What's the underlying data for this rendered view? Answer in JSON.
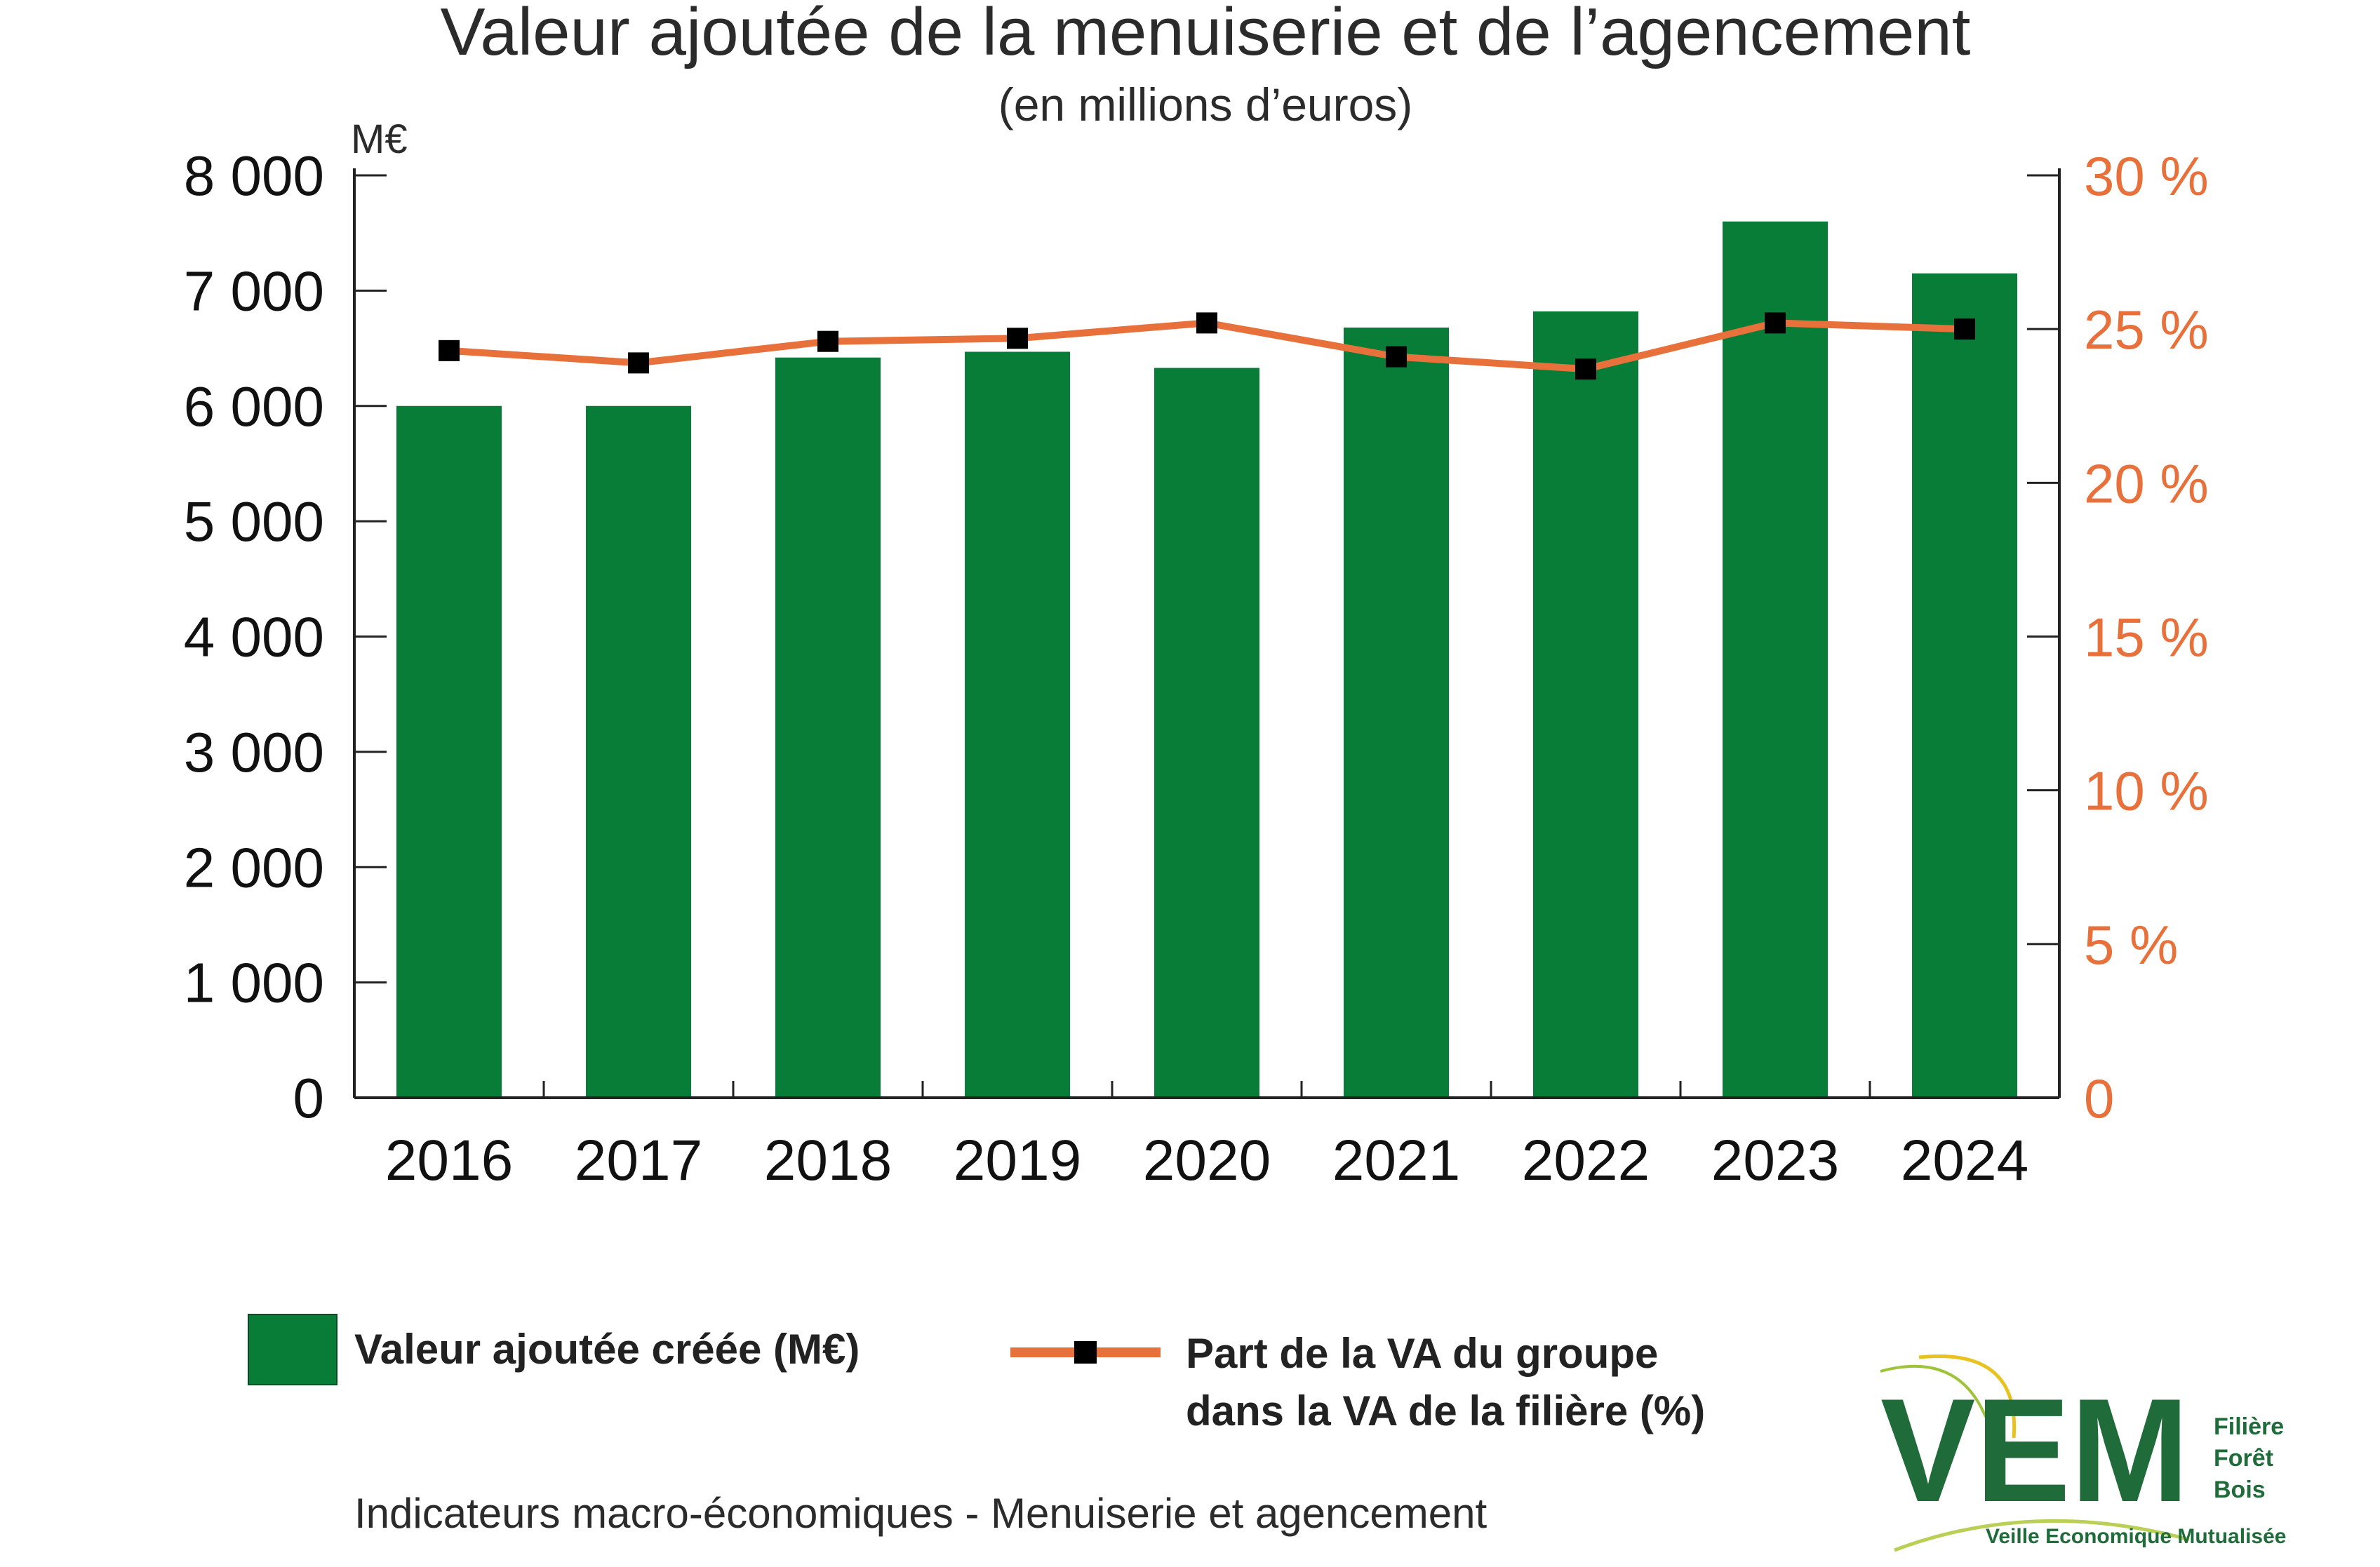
{
  "chart_data": {
    "type": "bar",
    "title": "Valeur ajoutée de la menuiserie et de l’agencement",
    "subtitle": "(en millions d’euros)",
    "y_unit": "M€",
    "categories": [
      "2016",
      "2017",
      "2018",
      "2019",
      "2020",
      "2021",
      "2022",
      "2023",
      "2024"
    ],
    "series": [
      {
        "name": "Valeur ajoutée créée (M€)",
        "type": "bar",
        "axis": "left",
        "values": [
          6000,
          6000,
          6420,
          6470,
          6330,
          6680,
          6820,
          7600,
          7150
        ]
      },
      {
        "name": "Part de la VA du groupe dans la VA de la filière (%)",
        "type": "line",
        "axis": "right",
        "values": [
          24.3,
          23.9,
          24.6,
          24.7,
          25.2,
          24.1,
          23.7,
          25.2,
          25.0
        ]
      }
    ],
    "y_left": {
      "min": 0,
      "max": 8000,
      "ticks": [
        0,
        1000,
        2000,
        3000,
        4000,
        5000,
        6000,
        7000,
        8000
      ],
      "tick_labels": [
        "0",
        "1 000",
        "2 000",
        "3 000",
        "4 000",
        "5 000",
        "6 000",
        "7 000",
        "8 000"
      ]
    },
    "y_right": {
      "min": 0,
      "max": 30,
      "ticks": [
        0,
        5,
        10,
        15,
        20,
        25,
        30
      ],
      "tick_labels": [
        "0",
        "5 %",
        "10 %",
        "15 %",
        "20 %",
        "25 %",
        "30 %"
      ]
    },
    "grid": false,
    "legend_position": "bottom"
  },
  "legend": {
    "bar_label": "Valeur ajoutée créée (M€)",
    "line_label_1": "Part de la VA du groupe",
    "line_label_2": "dans la VA de la filière (%)"
  },
  "footer": "Indicateurs macro-économiques - Menuiserie et agencement",
  "logo": {
    "letters": "VEM",
    "line1": "Filière",
    "line2": "Forêt",
    "line3": "Bois",
    "tagline": "Veille Economique Mutualisée"
  },
  "colors": {
    "bar": "#077d38",
    "line": "#e8703a",
    "marker": "#000000",
    "right_axis_text": "#e8703a",
    "logo_green": "#1f6b3a",
    "logo_yellow": "#e8c21e"
  }
}
